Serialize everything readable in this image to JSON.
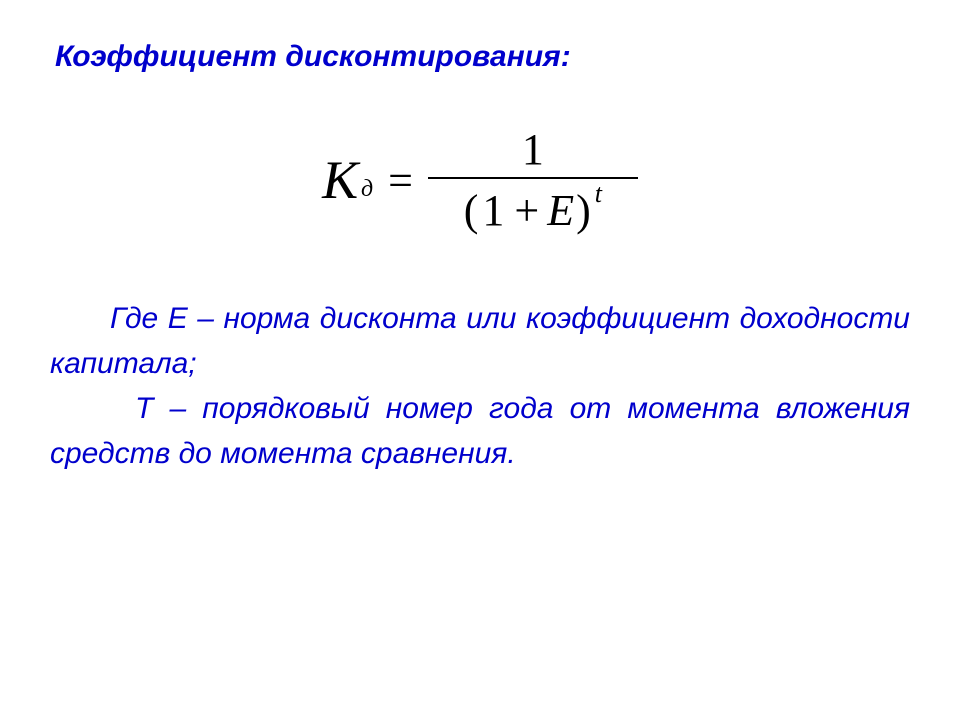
{
  "title": "Коэффициент дисконтирования:",
  "formula": {
    "K": "К",
    "subscript": "д",
    "equals": "=",
    "numerator": "1",
    "denom_open": "(",
    "denom_one": "1",
    "denom_plus": "+",
    "denom_E": "E",
    "denom_close": ")",
    "superscript": "t"
  },
  "explanation": {
    "line1_prefix": "Где Е – норма дисконта или коэффициент доходности капитала;",
    "line2": "Т – порядковый номер года от момента вложения средств до момента сравнения."
  },
  "colors": {
    "title_color": "#0000cc",
    "formula_color": "#000000",
    "background": "#ffffff"
  },
  "typography": {
    "title_fontsize": 30,
    "formula_fontsize": 50,
    "explanation_fontsize": 30
  }
}
